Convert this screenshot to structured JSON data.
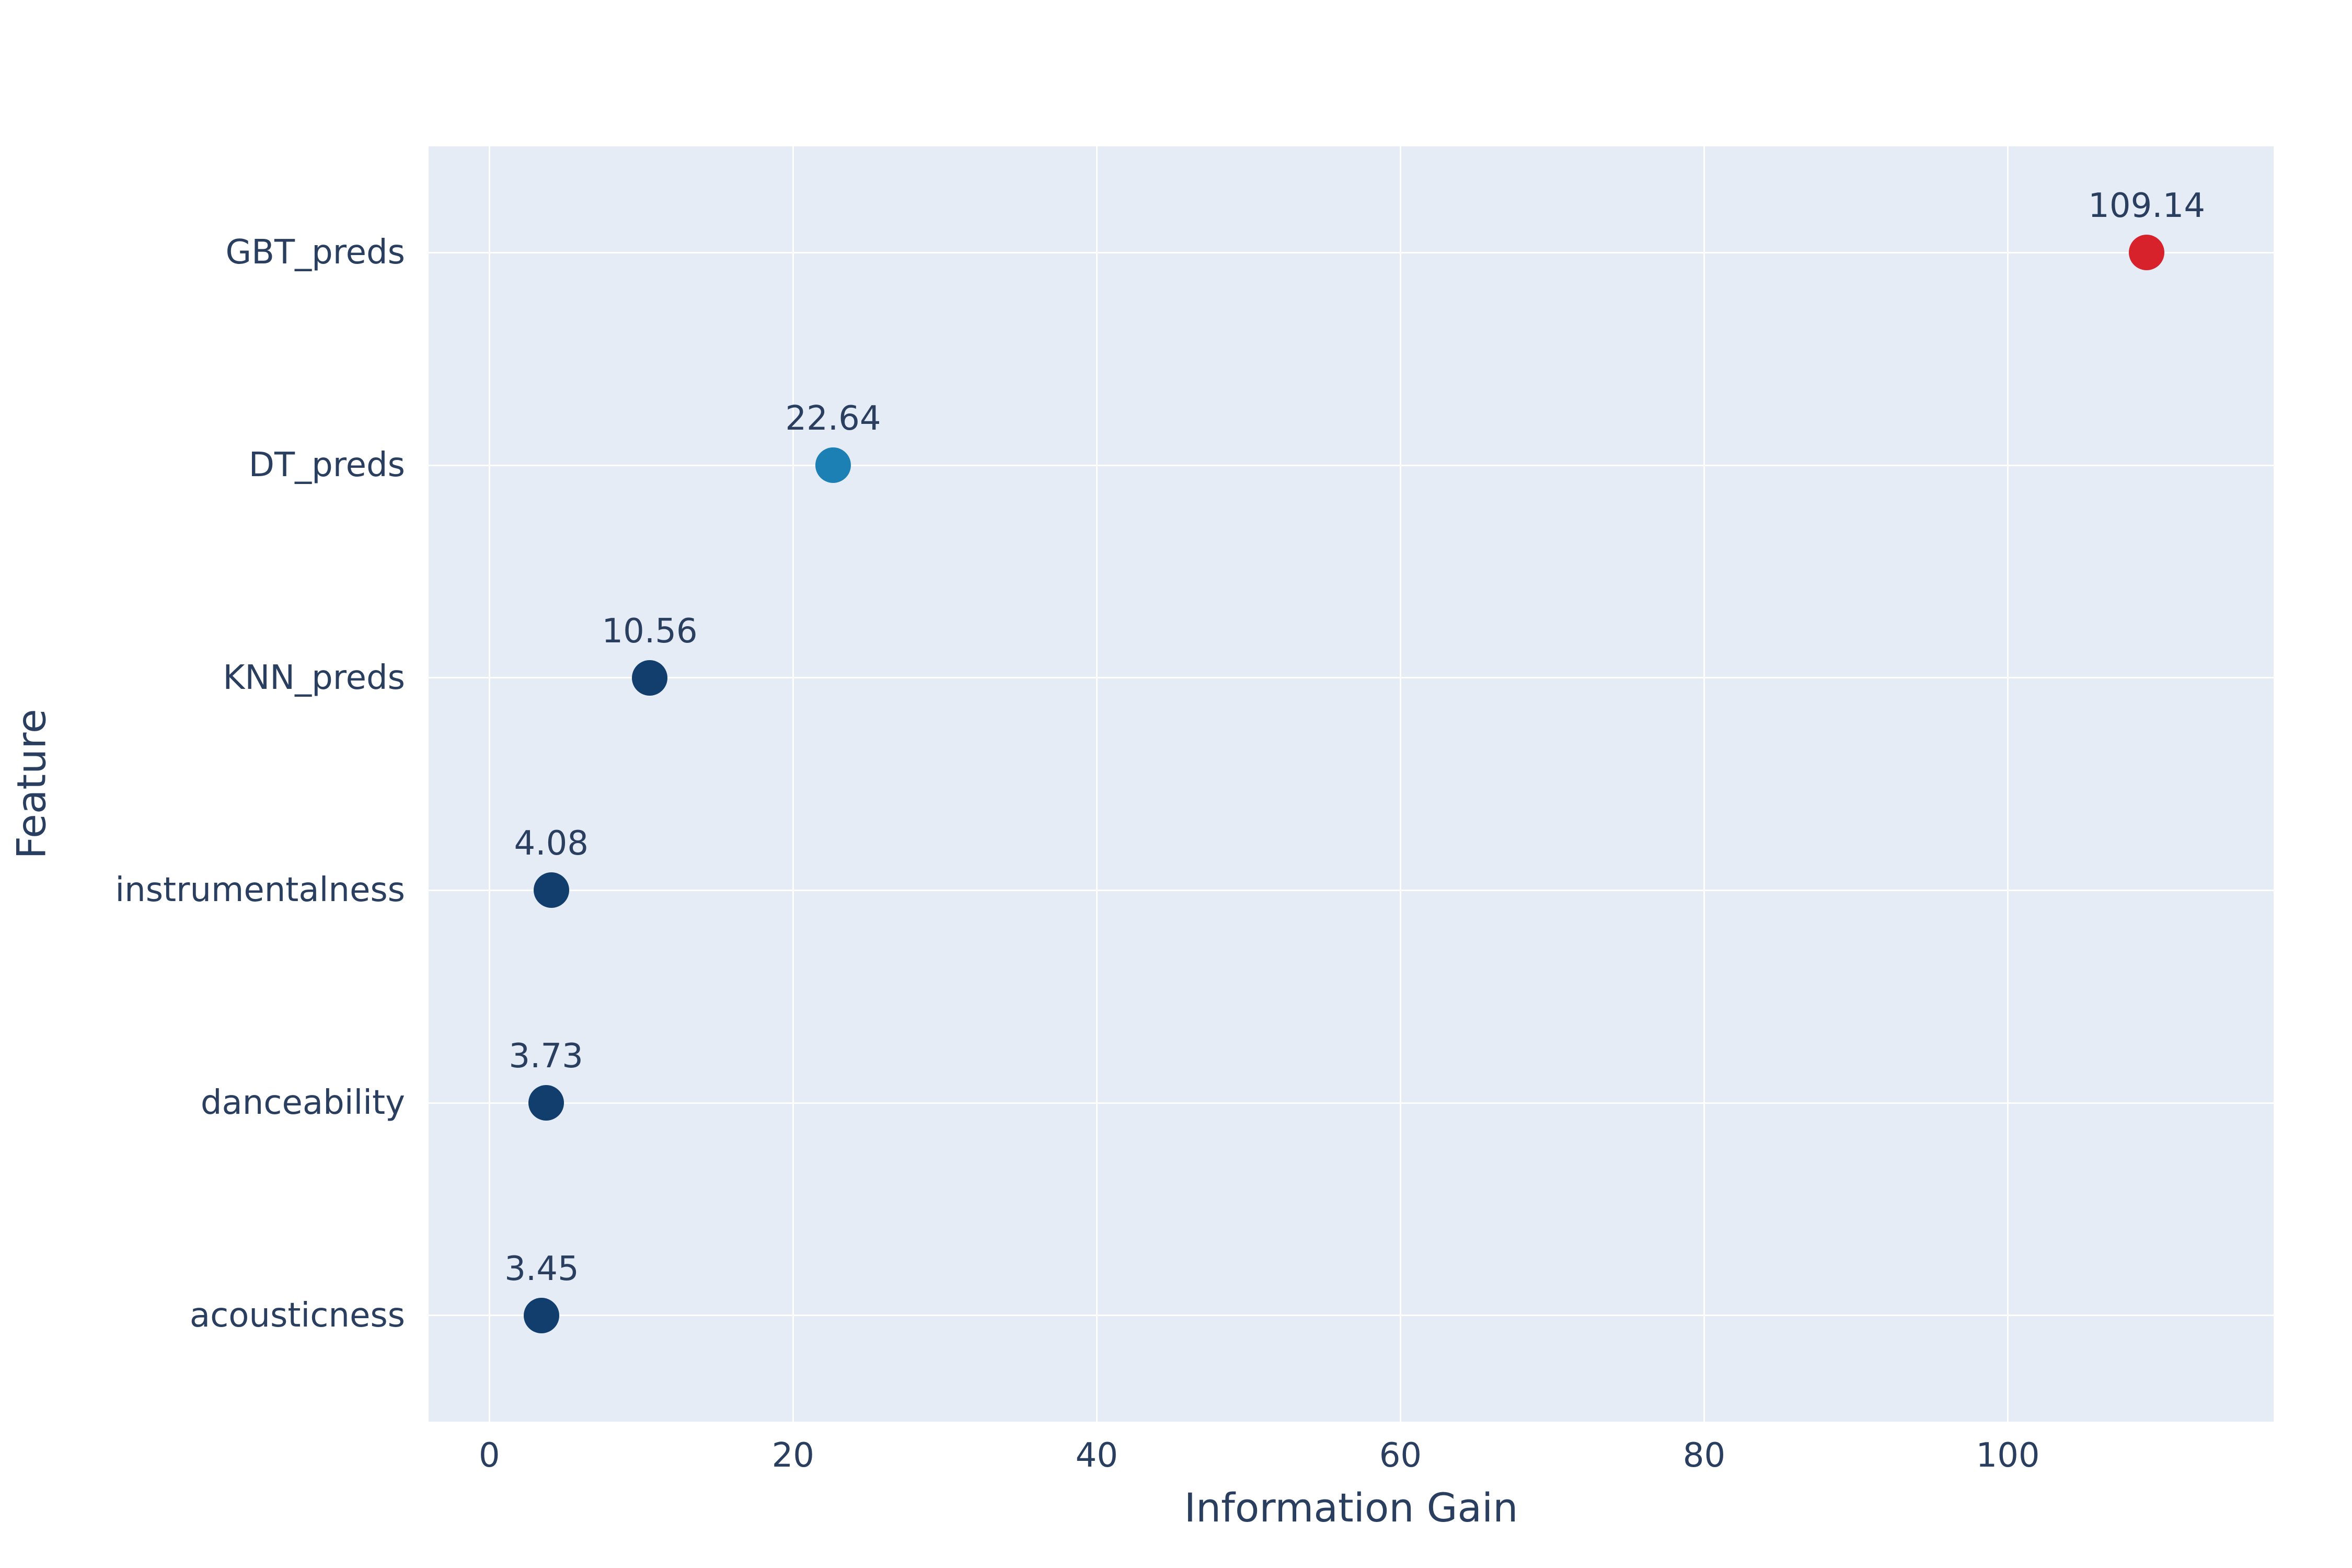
{
  "chart_data": {
    "type": "scatter",
    "orientation": "horizontal",
    "title": "",
    "xlabel": "Information Gain",
    "ylabel": "Feature",
    "categories": [
      "GBT_preds",
      "DT_preds",
      "KNN_preds",
      "instrumentalness",
      "danceability",
      "acousticness"
    ],
    "values": [
      109.14,
      22.64,
      10.56,
      4.08,
      3.73,
      3.45
    ],
    "value_labels": [
      "109.14",
      "22.64",
      "10.56",
      "4.08",
      "3.73",
      "3.45"
    ],
    "point_colors": [
      "#d7222b",
      "#1d80b5",
      "#123e6e",
      "#123e6e",
      "#123e6e",
      "#123e6e"
    ],
    "x_ticks": [
      0,
      20,
      40,
      60,
      80,
      100
    ],
    "x_tick_labels": [
      "0",
      "20",
      "40",
      "60",
      "80",
      "100"
    ],
    "xlim": [
      -4,
      117.5
    ],
    "grid": true,
    "legend": "none",
    "plot_bg": "#e5ecf6",
    "grid_color": "#ffffff",
    "text_color": "#2a3f5f"
  }
}
